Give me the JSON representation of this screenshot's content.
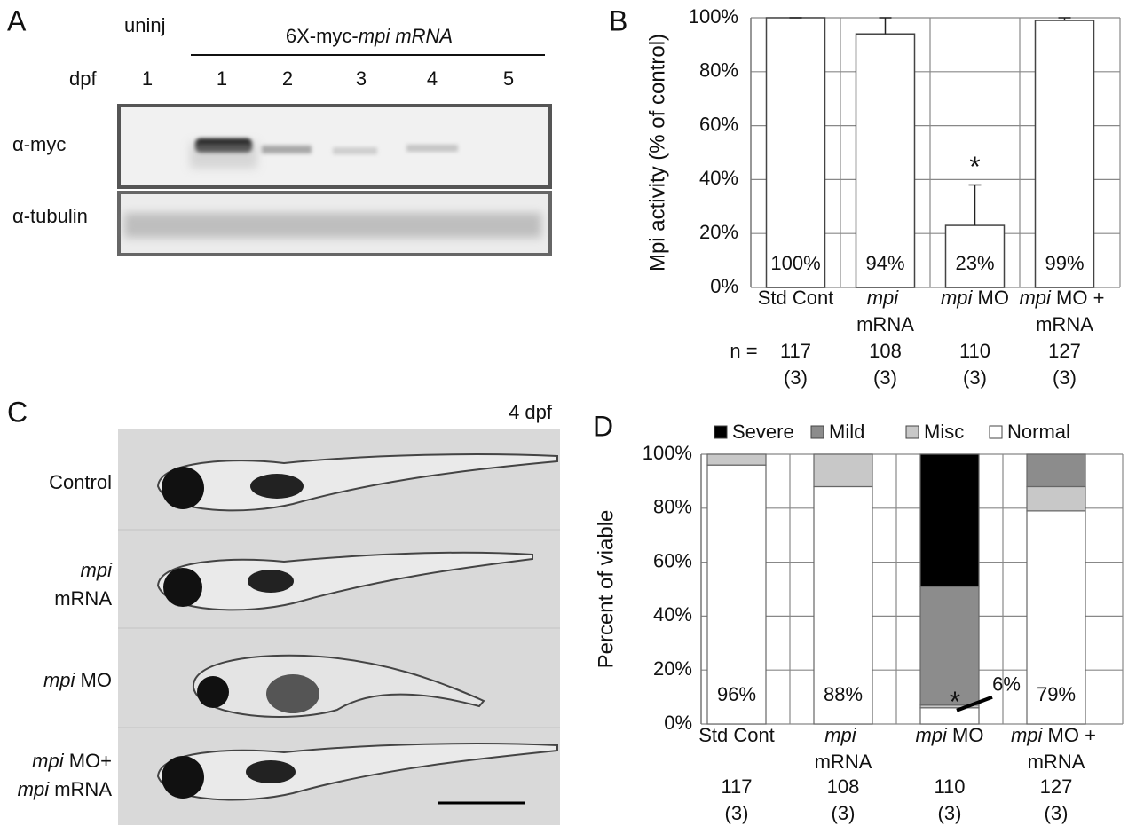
{
  "panels": [
    "A",
    "B",
    "C",
    "D"
  ],
  "blot": {
    "uninj": "uninj",
    "construct": "6X-myc-mpi mRNA",
    "dpf_label": "dpf",
    "lanes": [
      1,
      1,
      2,
      3,
      4,
      5
    ],
    "rows": [
      "α-myc",
      "α-tubulin"
    ]
  },
  "chart_data": [
    {
      "type": "bar",
      "y_label": "Mpi activity (% of control)",
      "categories": [
        "Std Cont",
        "mpi mRNA",
        "mpi MO",
        "mpi MO + mRNA"
      ],
      "values": [
        100,
        94,
        23,
        99
      ],
      "value_labels": [
        "100%",
        "94%",
        "23%",
        "99%"
      ],
      "errors": [
        0,
        6,
        15,
        1
      ],
      "color": "#ffffff",
      "ylim": [
        0,
        100
      ],
      "yticks": [
        {
          "value": 0,
          "label": "0%"
        },
        {
          "value": 20,
          "label": "20%"
        },
        {
          "value": 40,
          "label": "40%"
        },
        {
          "value": 60,
          "label": "60%"
        },
        {
          "value": 80,
          "label": "80%"
        },
        {
          "value": 100,
          "label": "100%"
        }
      ],
      "grid": true,
      "annotation": "*",
      "n_label": "n =",
      "n": [
        117,
        108,
        110,
        127
      ],
      "replicates": [
        "(3)",
        "(3)",
        "(3)",
        "(3)"
      ]
    },
    {
      "type": "stacked_bar",
      "y_label": "Percent of viable",
      "categories": [
        "Std Cont",
        "mpi mRNA",
        "mpi MO",
        "mpi MO + mRNA"
      ],
      "series": [
        {
          "name": "Severe",
          "color": "#000000",
          "values": [
            0,
            0,
            49,
            0
          ]
        },
        {
          "name": "Mild",
          "color": "#8c8c8c",
          "values": [
            0,
            0,
            44,
            12
          ]
        },
        {
          "name": "Misc",
          "color": "#c8c8c8",
          "values": [
            4,
            12,
            1,
            9
          ]
        },
        {
          "name": "Normal",
          "color": "#ffffff",
          "values": [
            96,
            88,
            6,
            79
          ],
          "value_labels": [
            "96%",
            "88%",
            "6%",
            "79%"
          ]
        }
      ],
      "ylim": [
        0,
        100
      ],
      "yticks": [
        {
          "value": 0,
          "label": "0%"
        },
        {
          "value": 20,
          "label": "20%"
        },
        {
          "value": 40,
          "label": "40%"
        },
        {
          "value": 60,
          "label": "60%"
        },
        {
          "value": 80,
          "label": "80%"
        },
        {
          "value": 100,
          "label": "100%"
        }
      ],
      "grid": true,
      "legend": "top",
      "annotation": "*",
      "n": [
        117,
        108,
        110,
        127
      ],
      "replicates": [
        "(3)",
        "(3)",
        "(3)",
        "(3)"
      ]
    }
  ],
  "images": {
    "stage": "4 dpf",
    "rows": [
      [
        "Control"
      ],
      [
        "mpi",
        "mRNA"
      ],
      [
        "mpi MO"
      ],
      [
        "mpi MO+",
        "mpi mRNA"
      ]
    ]
  }
}
